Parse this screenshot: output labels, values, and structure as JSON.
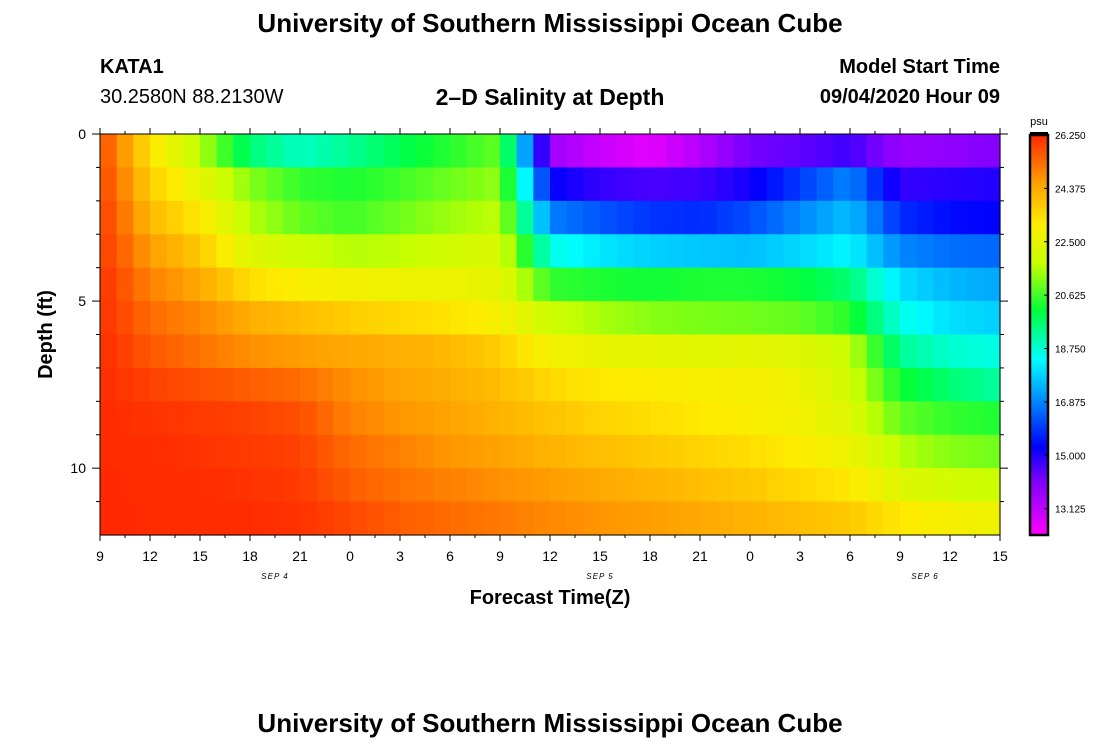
{
  "header": {
    "title": "University of Southern Mississippi Ocean Cube",
    "station": "KATA1",
    "coords": "30.2580N 88.2130W",
    "subtitle": "2–D Salinity at Depth",
    "model_label": "Model Start Time",
    "model_time": "09/04/2020 Hour 09"
  },
  "footer": {
    "title": "University of Southern Mississippi Ocean Cube"
  },
  "chart_data": {
    "type": "heatmap",
    "title": "2–D Salinity at Depth",
    "xlabel": "Forecast Time(Z)",
    "ylabel": "Depth (ft)",
    "x_tick_labels": [
      "9",
      "12",
      "15",
      "18",
      "21",
      "0",
      "3",
      "6",
      "9",
      "12",
      "15",
      "18",
      "21",
      "0",
      "3",
      "6",
      "9",
      "12",
      "15"
    ],
    "x_date_labels": [
      {
        "label": "SEP 4",
        "at_tick": 3.5
      },
      {
        "label": "SEP 5",
        "at_tick": 10.0
      },
      {
        "label": "SEP 6",
        "at_tick": 16.5
      }
    ],
    "x_hours": [
      0,
      54
    ],
    "y_range": [
      0,
      12
    ],
    "y_ticks": [
      0,
      5,
      10
    ],
    "y_tick_labels": [
      "0",
      "5",
      "10"
    ],
    "colorbar": {
      "unit": "psu",
      "min": 12.2,
      "max": 26.25,
      "tick_values": [
        26.25,
        24.375,
        22.5,
        20.625,
        18.75,
        16.875,
        15.0,
        13.125
      ],
      "tick_labels": [
        "26.250",
        "24.375",
        "22.500",
        "20.625",
        "18.750",
        "16.875",
        "15.000",
        "13.125"
      ]
    },
    "layer_depths_ft": [
      0.5,
      1.5,
      2.5,
      3.5,
      4.5,
      5.5,
      6.5,
      7.5,
      8.5,
      9.5,
      10.5,
      11.5
    ],
    "time_hours": [
      0,
      1,
      2,
      3,
      6,
      9,
      12,
      15,
      18,
      21,
      24,
      27,
      30,
      33,
      36,
      39,
      42,
      45,
      48,
      51,
      54
    ],
    "salinity_psu": [
      [
        25.8,
        25.0,
        24.2,
        23.3,
        21.6,
        19.6,
        18.9,
        19.3,
        19.9,
        20.4,
        20.9,
        13.6,
        13.0,
        12.6,
        13.3,
        14.2,
        14.4,
        14.7,
        13.7,
        13.8,
        14.0
      ],
      [
        25.9,
        25.2,
        24.5,
        23.7,
        22.5,
        21.2,
        20.5,
        20.3,
        20.6,
        21.0,
        21.3,
        15.3,
        14.8,
        14.6,
        14.7,
        15.1,
        16.0,
        16.9,
        14.8,
        14.9,
        15.0
      ],
      [
        26.0,
        25.4,
        24.8,
        24.1,
        23.2,
        21.6,
        20.9,
        20.6,
        21.0,
        21.4,
        21.7,
        16.8,
        16.3,
        15.9,
        15.8,
        16.2,
        16.9,
        17.6,
        15.8,
        15.4,
        15.3
      ],
      [
        26.0,
        25.6,
        25.1,
        24.6,
        23.8,
        22.3,
        21.9,
        21.6,
        21.7,
        22.0,
        22.2,
        18.6,
        18.1,
        17.8,
        17.7,
        17.6,
        17.9,
        18.3,
        16.9,
        16.6,
        16.5
      ],
      [
        26.1,
        25.8,
        25.4,
        25.0,
        24.4,
        23.4,
        23.0,
        22.8,
        22.7,
        22.7,
        22.5,
        20.5,
        20.3,
        20.2,
        20.3,
        20.3,
        20.1,
        19.6,
        18.0,
        17.5,
        17.3
      ],
      [
        26.1,
        25.9,
        25.6,
        25.3,
        24.9,
        24.3,
        24.0,
        23.7,
        23.5,
        23.3,
        22.9,
        21.9,
        21.5,
        21.2,
        21.1,
        21.0,
        20.9,
        20.4,
        18.6,
        18.0,
        17.8
      ],
      [
        26.2,
        26.0,
        25.8,
        25.6,
        25.2,
        24.8,
        24.6,
        24.4,
        24.3,
        24.1,
        23.7,
        22.8,
        22.6,
        22.5,
        22.4,
        22.5,
        22.3,
        21.8,
        19.3,
        18.8,
        18.6
      ],
      [
        26.2,
        26.1,
        26.0,
        25.9,
        25.7,
        25.5,
        25.3,
        24.8,
        24.5,
        24.3,
        24.0,
        23.5,
        23.2,
        23.1,
        23.0,
        22.9,
        22.7,
        22.0,
        20.2,
        19.6,
        19.2
      ],
      [
        26.2,
        26.2,
        26.1,
        26.1,
        26.0,
        25.9,
        25.7,
        25.0,
        24.7,
        24.5,
        24.2,
        23.9,
        23.6,
        23.4,
        23.2,
        23.0,
        22.8,
        22.3,
        20.9,
        20.5,
        20.3
      ],
      [
        26.2,
        26.2,
        26.2,
        26.2,
        26.1,
        26.0,
        25.9,
        25.3,
        25.0,
        24.7,
        24.5,
        24.2,
        24.0,
        23.8,
        23.6,
        23.4,
        23.1,
        22.7,
        21.6,
        21.2,
        21.0
      ],
      [
        26.25,
        26.25,
        26.2,
        26.2,
        26.2,
        26.1,
        26.0,
        25.5,
        25.2,
        25.0,
        24.8,
        24.6,
        24.4,
        24.2,
        24.0,
        23.8,
        23.5,
        23.2,
        22.3,
        22.0,
        21.8
      ],
      [
        26.25,
        26.25,
        26.25,
        26.2,
        26.2,
        26.2,
        26.1,
        25.8,
        25.5,
        25.3,
        25.1,
        24.9,
        24.7,
        24.6,
        24.4,
        24.2,
        24.0,
        23.8,
        23.2,
        22.9,
        22.7
      ]
    ]
  }
}
